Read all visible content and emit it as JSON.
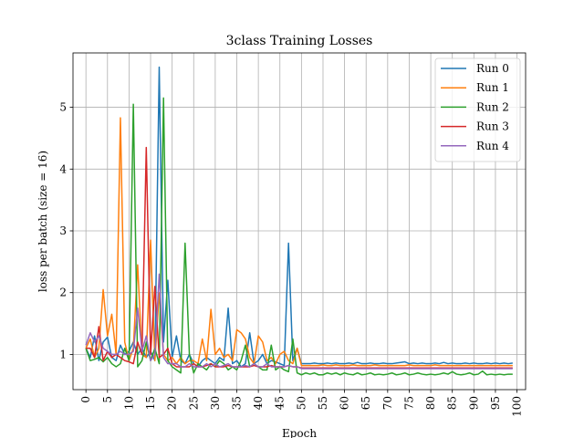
{
  "chart_data": {
    "type": "line",
    "title": "3class Training Losses",
    "xlabel": "Epoch",
    "ylabel": "loss per batch (size = 16)",
    "xlim": [
      -3,
      102
    ],
    "ylim": [
      0.43,
      5.88
    ],
    "xticks": [
      0,
      5,
      10,
      15,
      20,
      25,
      30,
      35,
      40,
      45,
      50,
      55,
      60,
      65,
      70,
      75,
      80,
      85,
      90,
      95,
      100
    ],
    "xtick_labels": [
      "0",
      "5",
      "10",
      "15",
      "20",
      "25",
      "30",
      "35",
      "40",
      "45",
      "50",
      "55",
      "60",
      "65",
      "70",
      "75",
      "80",
      "85",
      "90",
      "95",
      "100"
    ],
    "yticks": [
      1,
      2,
      3,
      4,
      5
    ],
    "ytick_labels": [
      "1",
      "2",
      "3",
      "4",
      "5"
    ],
    "grid": true,
    "legend_position": "top-right",
    "series": [
      {
        "name": "Run 0",
        "color": "#1f77b4",
        "values": [
          1.1,
          0.95,
          1.3,
          0.9,
          1.2,
          1.28,
          0.95,
          0.9,
          1.15,
          1.0,
          1.05,
          1.2,
          1.0,
          1.1,
          0.95,
          1.05,
          0.9,
          5.65,
          1.2,
          2.2,
          0.95,
          1.3,
          0.9,
          0.85,
          1.0,
          0.85,
          0.8,
          0.9,
          0.95,
          0.9,
          0.85,
          0.95,
          0.9,
          1.75,
          0.85,
          0.9,
          0.8,
          0.85,
          1.35,
          0.85,
          0.9,
          1.0,
          0.85,
          0.9,
          0.88,
          0.85,
          0.82,
          2.8,
          0.9,
          1.1,
          0.85,
          0.85,
          0.85,
          0.86,
          0.85,
          0.85,
          0.86,
          0.85,
          0.86,
          0.85,
          0.85,
          0.86,
          0.85,
          0.87,
          0.85,
          0.85,
          0.86,
          0.85,
          0.85,
          0.86,
          0.85,
          0.85,
          0.86,
          0.87,
          0.88,
          0.85,
          0.86,
          0.85,
          0.86,
          0.85,
          0.85,
          0.86,
          0.85,
          0.87,
          0.85,
          0.86,
          0.85,
          0.85,
          0.86,
          0.85,
          0.86,
          0.85,
          0.85,
          0.86,
          0.85,
          0.86,
          0.85,
          0.86,
          0.85,
          0.86
        ]
      },
      {
        "name": "Run 1",
        "color": "#ff7f0e",
        "values": [
          1.1,
          1.25,
          0.95,
          1.1,
          2.05,
          1.3,
          1.65,
          1.0,
          4.83,
          1.2,
          0.9,
          1.1,
          2.45,
          1.0,
          0.95,
          2.85,
          0.9,
          2.0,
          1.0,
          0.9,
          0.95,
          0.85,
          0.95,
          0.85,
          0.9,
          0.9,
          0.85,
          1.25,
          0.9,
          1.73,
          1.0,
          1.1,
          0.95,
          1.0,
          0.9,
          1.4,
          1.35,
          1.25,
          0.95,
          0.85,
          1.3,
          1.2,
          0.9,
          0.95,
          0.85,
          1.0,
          1.05,
          0.9,
          0.85,
          1.1,
          0.82,
          0.82,
          0.82,
          0.82,
          0.82,
          0.83,
          0.82,
          0.82,
          0.83,
          0.82,
          0.82,
          0.82,
          0.83,
          0.82,
          0.82,
          0.82,
          0.82,
          0.83,
          0.82,
          0.82,
          0.82,
          0.82,
          0.82,
          0.82,
          0.82,
          0.83,
          0.82,
          0.82,
          0.82,
          0.82,
          0.82,
          0.83,
          0.82,
          0.82,
          0.82,
          0.82,
          0.82,
          0.82,
          0.82,
          0.82,
          0.82,
          0.82,
          0.82,
          0.82,
          0.82,
          0.82,
          0.82,
          0.82,
          0.82,
          0.82
        ]
      },
      {
        "name": "Run 2",
        "color": "#2ca02c",
        "values": [
          1.1,
          0.9,
          0.92,
          0.95,
          0.88,
          0.95,
          0.85,
          0.8,
          0.85,
          1.1,
          0.9,
          5.05,
          0.8,
          0.9,
          1.2,
          0.9,
          1.1,
          0.85,
          5.15,
          0.9,
          0.8,
          0.75,
          0.7,
          2.8,
          1.0,
          0.7,
          0.85,
          0.8,
          0.75,
          0.85,
          0.8,
          0.9,
          0.85,
          0.75,
          0.8,
          0.75,
          0.9,
          1.15,
          0.8,
          0.85,
          0.8,
          0.75,
          0.75,
          1.15,
          0.75,
          0.8,
          0.75,
          0.72,
          1.25,
          0.7,
          0.67,
          0.7,
          0.68,
          0.7,
          0.67,
          0.67,
          0.7,
          0.68,
          0.7,
          0.67,
          0.7,
          0.68,
          0.67,
          0.7,
          0.67,
          0.68,
          0.7,
          0.67,
          0.68,
          0.67,
          0.68,
          0.7,
          0.67,
          0.68,
          0.7,
          0.67,
          0.68,
          0.7,
          0.68,
          0.67,
          0.68,
          0.67,
          0.68,
          0.7,
          0.68,
          0.72,
          0.68,
          0.67,
          0.68,
          0.7,
          0.67,
          0.68,
          0.73,
          0.67,
          0.68,
          0.67,
          0.68,
          0.67,
          0.68,
          0.68
        ]
      },
      {
        "name": "Run 3",
        "color": "#d62728",
        "values": [
          1.1,
          1.1,
          0.95,
          1.45,
          0.9,
          1.05,
          0.95,
          1.0,
          0.95,
          0.9,
          0.88,
          0.85,
          1.2,
          1.0,
          4.35,
          1.0,
          2.1,
          0.95,
          1.0,
          1.1,
          0.85,
          0.8,
          0.8,
          0.8,
          0.8,
          0.85,
          0.8,
          0.8,
          0.82,
          0.85,
          0.8,
          0.8,
          0.8,
          0.82,
          0.8,
          0.8,
          0.8,
          0.8,
          0.8,
          0.82,
          0.8,
          0.8,
          0.8,
          0.82,
          0.8,
          0.8,
          0.8,
          0.82,
          0.8,
          0.8,
          0.78,
          0.78,
          0.78,
          0.78,
          0.78,
          0.78,
          0.78,
          0.78,
          0.78,
          0.78,
          0.78,
          0.78,
          0.78,
          0.78,
          0.78,
          0.78,
          0.78,
          0.78,
          0.78,
          0.78,
          0.78,
          0.78,
          0.78,
          0.78,
          0.78,
          0.78,
          0.78,
          0.78,
          0.78,
          0.78,
          0.78,
          0.78,
          0.78,
          0.78,
          0.78,
          0.78,
          0.78,
          0.78,
          0.78,
          0.78,
          0.78,
          0.78,
          0.78,
          0.78,
          0.78,
          0.78,
          0.78,
          0.78,
          0.78,
          0.78
        ]
      },
      {
        "name": "Run 4",
        "color": "#9467bd",
        "values": [
          1.15,
          1.35,
          1.2,
          1.3,
          1.1,
          1.05,
          1.0,
          1.0,
          1.05,
          1.0,
          1.0,
          1.05,
          1.75,
          1.05,
          1.3,
          0.9,
          1.0,
          2.3,
          0.95,
          0.85,
          0.85,
          0.85,
          0.8,
          0.8,
          0.85,
          0.8,
          0.8,
          0.8,
          0.85,
          0.8,
          0.85,
          0.8,
          0.82,
          0.85,
          0.8,
          0.8,
          0.8,
          0.82,
          0.8,
          0.85,
          0.8,
          0.8,
          0.85,
          0.8,
          0.8,
          0.8,
          0.8,
          0.82,
          0.8,
          0.8,
          0.77,
          0.77,
          0.77,
          0.77,
          0.77,
          0.77,
          0.77,
          0.77,
          0.77,
          0.77,
          0.77,
          0.77,
          0.77,
          0.77,
          0.77,
          0.77,
          0.77,
          0.77,
          0.77,
          0.77,
          0.77,
          0.77,
          0.77,
          0.77,
          0.77,
          0.77,
          0.77,
          0.77,
          0.77,
          0.77,
          0.77,
          0.77,
          0.77,
          0.77,
          0.77,
          0.77,
          0.77,
          0.77,
          0.77,
          0.77,
          0.77,
          0.77,
          0.77,
          0.77,
          0.77,
          0.77,
          0.77,
          0.77,
          0.77,
          0.77
        ]
      }
    ]
  }
}
